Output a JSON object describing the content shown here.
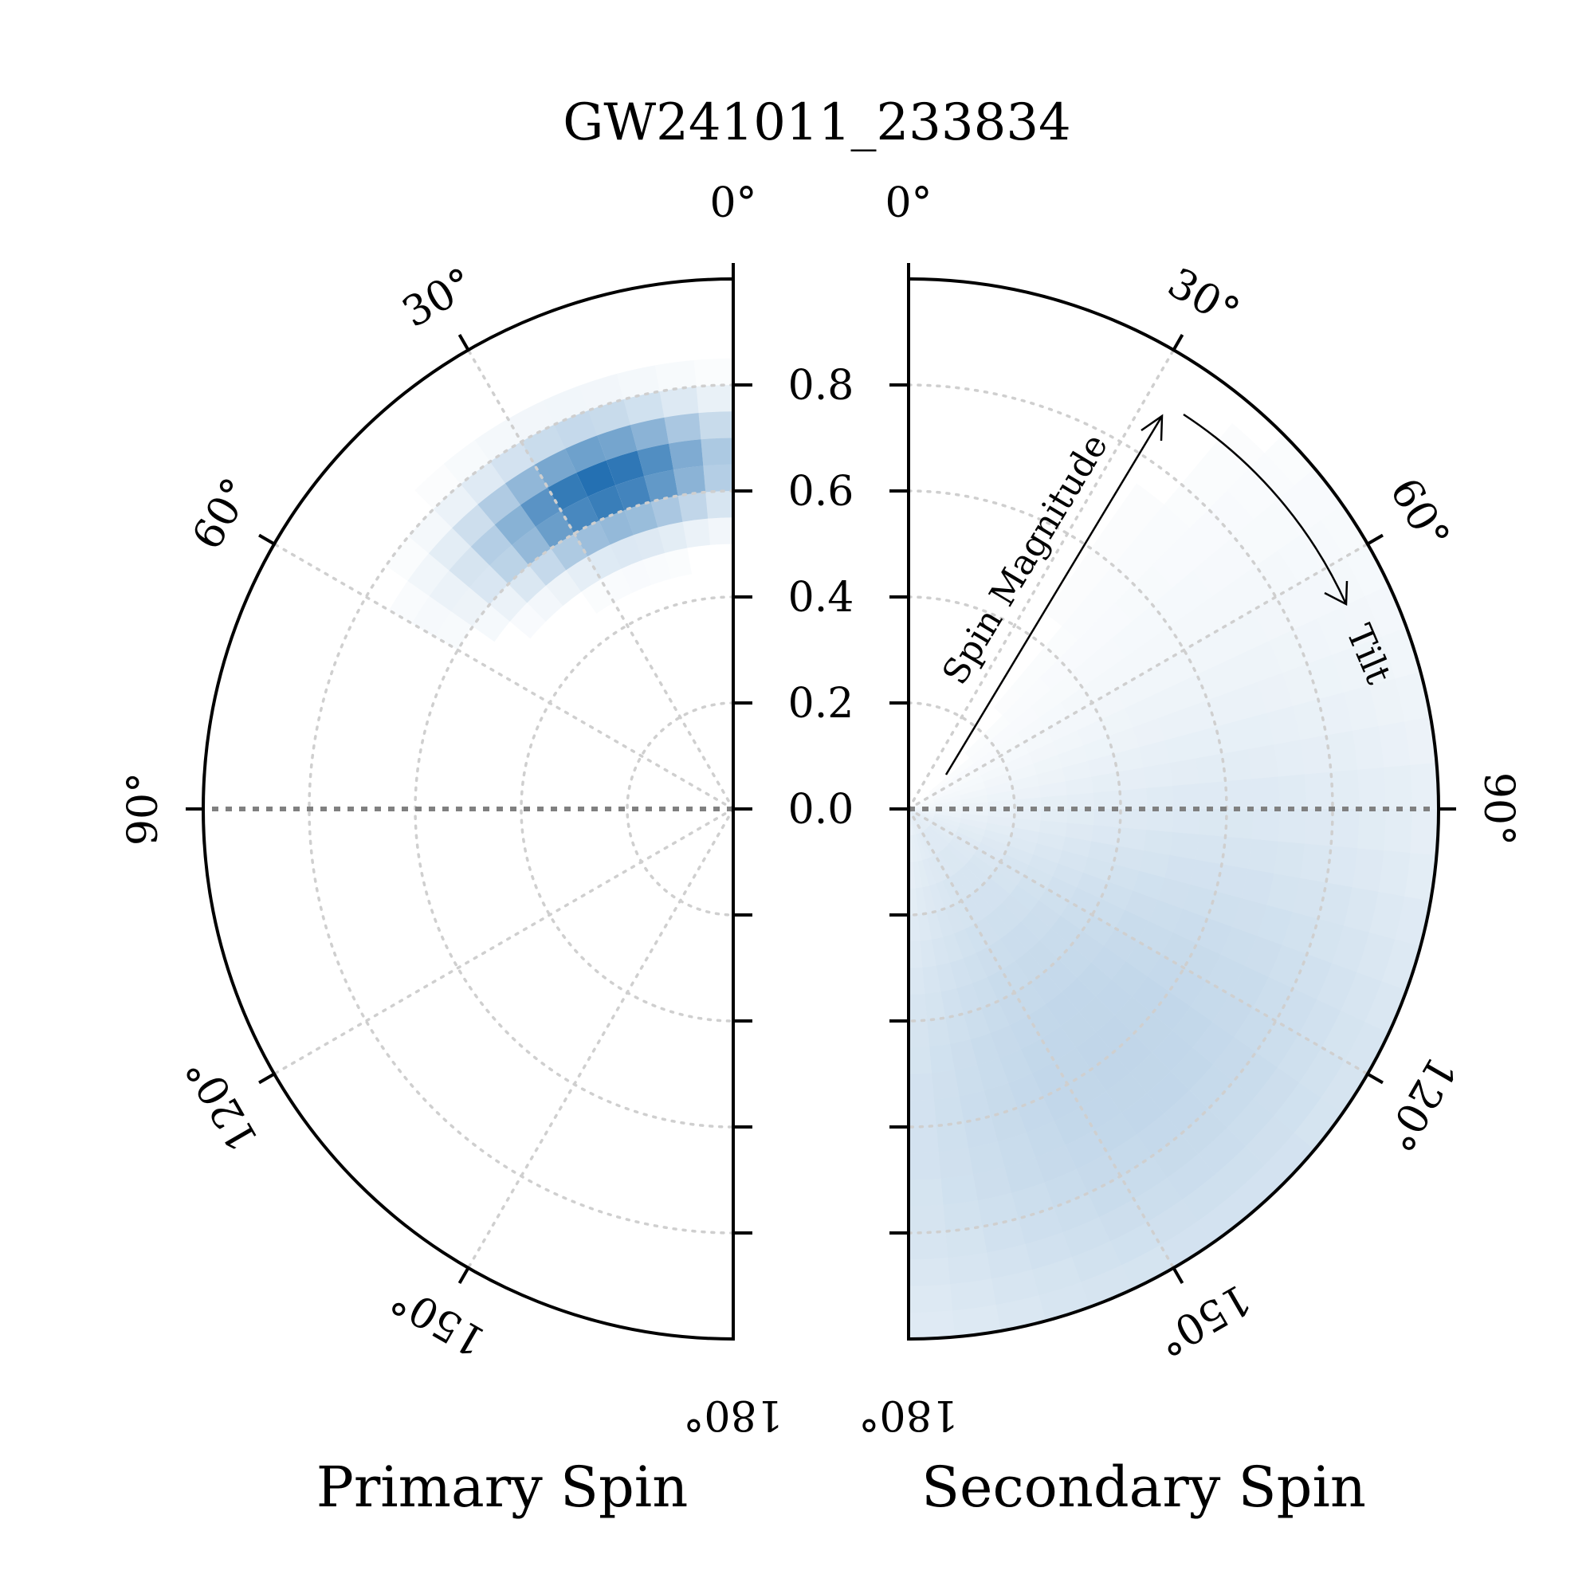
{
  "chart_data": {
    "type": "polar-heatmap",
    "title": "GW241011_233834",
    "radial_axis": {
      "label": "Spin Magnitude",
      "range": [
        0,
        1
      ],
      "tick_values": [
        0.0,
        0.2,
        0.4,
        0.6,
        0.8
      ],
      "tick_labels": [
        "0.8",
        "0.6",
        "0.4",
        "0.2",
        "0.0"
      ]
    },
    "angular_axis": {
      "label": "Tilt",
      "range_deg": [
        0,
        180
      ],
      "tick_labels": [
        "0°",
        "30°",
        "60°",
        "90°",
        "120°",
        "150°",
        "180°"
      ]
    },
    "grid": true,
    "colormap": "Blues",
    "panels": [
      {
        "name": "Primary Spin",
        "side": "left",
        "density_peak": {
          "magnitude": 0.66,
          "tilt_deg": 22,
          "magnitude_spread": 0.07,
          "tilt_spread_deg": 14
        },
        "peak_alpha": 1.0
      },
      {
        "name": "Secondary Spin",
        "side": "right",
        "density_peak": {
          "magnitude": 0.6,
          "tilt_deg": 140,
          "magnitude_spread": 0.45,
          "tilt_spread_deg": 45
        },
        "peak_alpha": 0.28
      }
    ]
  },
  "colors": {
    "density": "#1f6db0",
    "grid": "#cfcfcf",
    "equator": "#808080",
    "frame": "#000000"
  }
}
